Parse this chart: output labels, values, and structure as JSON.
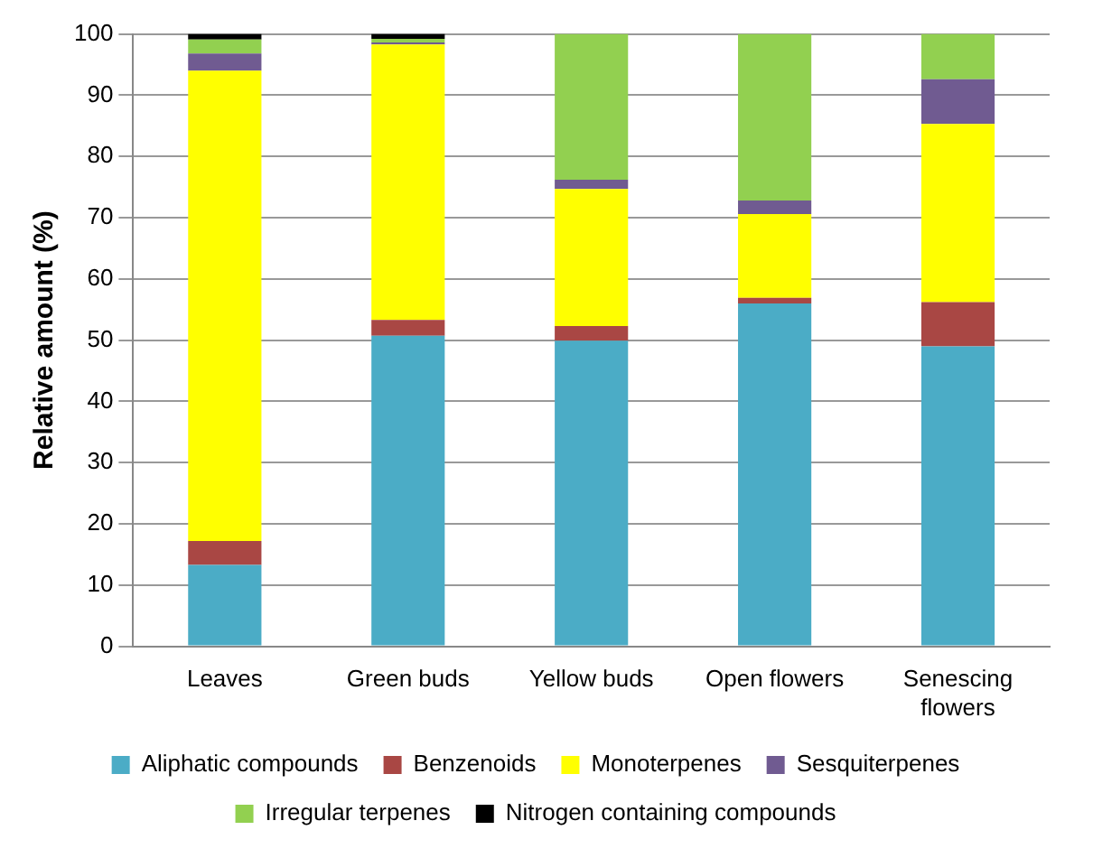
{
  "chart_data": {
    "type": "bar",
    "stacked": true,
    "ylabel": "Relative amount (%)",
    "categories": [
      "Leaves",
      "Green buds",
      "Yellow buds",
      "Open flowers",
      "Senescing flowers"
    ],
    "series": [
      {
        "name": "Aliphatic compounds",
        "color": "#4bacc6",
        "values": [
          13.3,
          50.7,
          49.9,
          56.0,
          49.0
        ]
      },
      {
        "name": "Benzenoids",
        "color": "#a94744",
        "values": [
          3.9,
          2.6,
          2.4,
          0.9,
          7.2
        ]
      },
      {
        "name": "Monoterpenes",
        "color": "#ffff00",
        "values": [
          76.8,
          45.0,
          22.4,
          13.7,
          29.1
        ]
      },
      {
        "name": "Sesquiterpenes",
        "color": "#705b91",
        "values": [
          2.8,
          0.3,
          1.5,
          2.2,
          7.3
        ]
      },
      {
        "name": "Irregular terpenes",
        "color": "#92d050",
        "values": [
          2.3,
          0.6,
          23.8,
          27.2,
          7.4
        ]
      },
      {
        "name": "Nitrogen containing compounds",
        "color": "#000000",
        "values": [
          0.9,
          0.8,
          0,
          0,
          0
        ]
      }
    ],
    "ylim": [
      0,
      100
    ],
    "yticks": [
      0,
      10,
      20,
      30,
      40,
      50,
      60,
      70,
      80,
      90,
      100
    ],
    "grid": "y",
    "legend": "bottom"
  }
}
